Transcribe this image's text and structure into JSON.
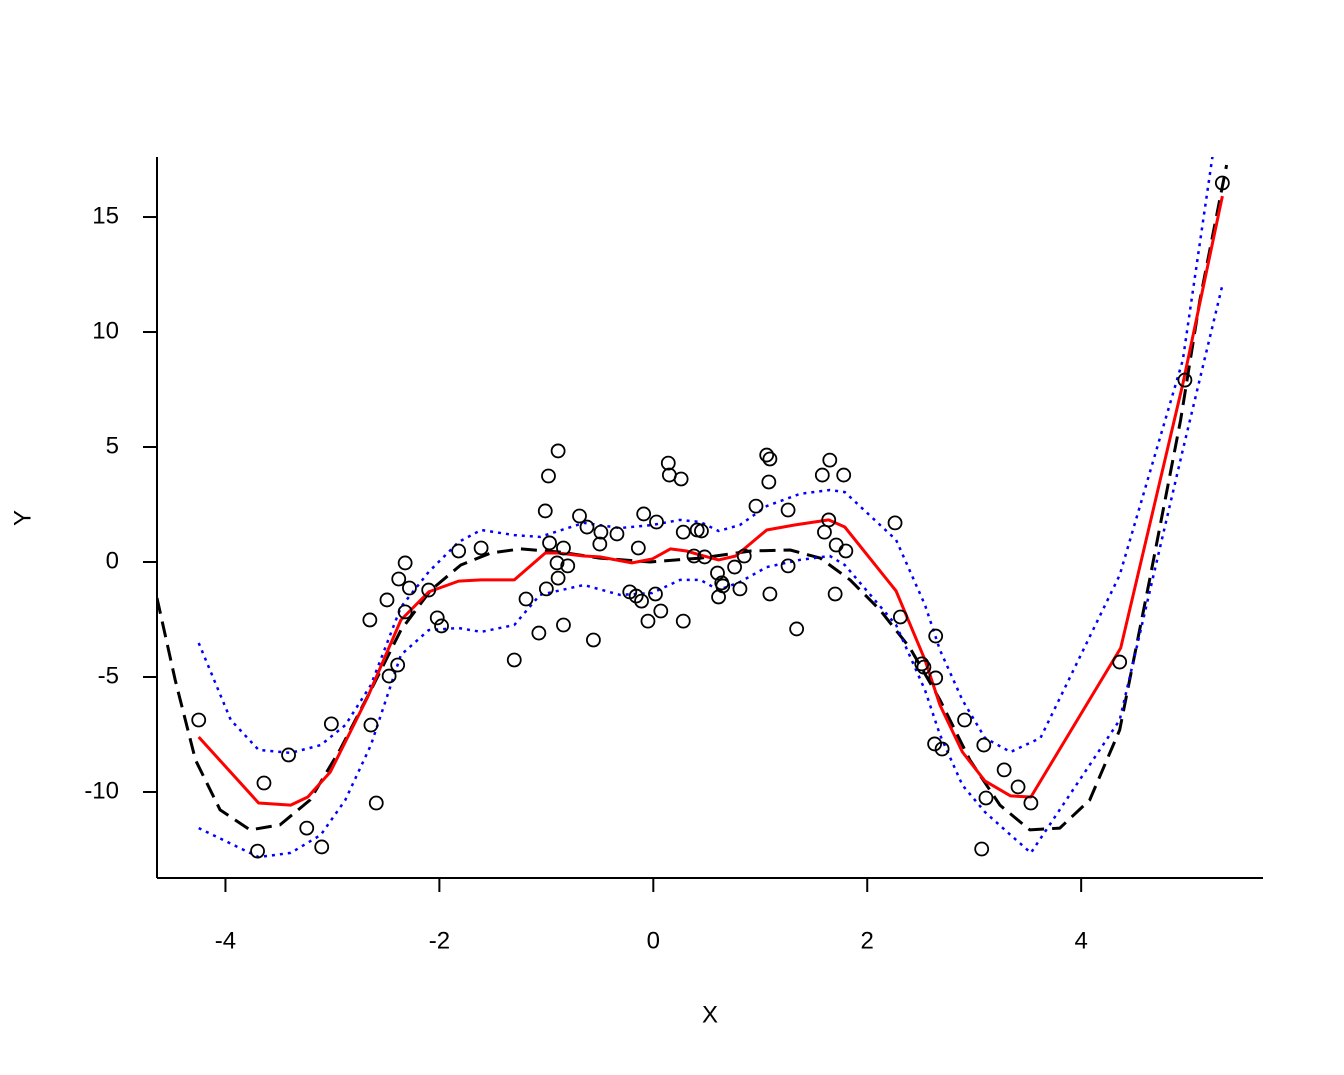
{
  "chart_data": {
    "type": "scatter",
    "x_label": "X",
    "y_label": "Y",
    "xlim": [
      -4.64,
      5.7
    ],
    "ylim": [
      -13.74,
      17.61
    ],
    "xticks": [
      -4,
      -2,
      0,
      2,
      4
    ],
    "yticks": [
      -10,
      -5,
      0,
      5,
      10,
      15
    ],
    "series": [
      {
        "style": "points",
        "color": "#000000",
        "x": [
          -4.25,
          -3.64,
          -3.7,
          -3.41,
          -3.24,
          -3.1,
          -3.01,
          -2.65,
          -2.64,
          -2.59,
          -2.49,
          -2.47,
          -2.39,
          -2.38,
          -2.32,
          -2.32,
          -2.28,
          -2.1,
          -2.02,
          -1.98,
          -1.82,
          -1.61,
          -1.3,
          -1.19,
          -1.07,
          -1.01,
          -0.98,
          -0.97,
          -1.0,
          -0.89,
          -0.9,
          -0.89,
          -0.84,
          -0.84,
          -0.8,
          -0.69,
          -0.62,
          -0.56,
          -0.5,
          -0.49,
          -0.34,
          -0.22,
          -0.16,
          -0.14,
          -0.11,
          -0.09,
          -0.05,
          0.02,
          0.03,
          0.07,
          0.14,
          0.15,
          0.26,
          0.28,
          0.28,
          0.38,
          0.41,
          0.45,
          0.48,
          0.6,
          0.61,
          0.64,
          0.65,
          0.76,
          0.81,
          0.85,
          0.96,
          1.06,
          1.09,
          1.08,
          1.09,
          1.26,
          1.26,
          1.34,
          1.58,
          1.6,
          1.65,
          1.64,
          1.7,
          1.71,
          1.78,
          1.8,
          2.26,
          2.31,
          2.51,
          2.53,
          2.64,
          2.63,
          2.64,
          2.7,
          2.91,
          3.07,
          3.09,
          3.11,
          3.28,
          3.41,
          3.53,
          4.36,
          4.97,
          5.32
        ],
        "values": [
          -6.87,
          -9.61,
          -12.57,
          -8.39,
          -11.57,
          -12.39,
          -7.04,
          -2.52,
          -7.09,
          -10.48,
          -1.65,
          -4.96,
          -4.48,
          -0.74,
          -0.04,
          -2.17,
          -1.13,
          -1.22,
          -2.43,
          -2.78,
          0.48,
          0.61,
          -4.26,
          -1.61,
          -3.09,
          2.22,
          3.74,
          0.83,
          -1.17,
          4.83,
          -0.04,
          -0.7,
          0.61,
          -2.74,
          -0.17,
          2.0,
          1.52,
          -3.39,
          0.78,
          1.3,
          1.22,
          -1.3,
          -1.48,
          0.61,
          -1.7,
          2.09,
          -2.57,
          -1.39,
          1.74,
          -2.13,
          4.3,
          3.78,
          3.61,
          -2.57,
          1.3,
          0.26,
          1.39,
          1.35,
          0.22,
          -0.48,
          -1.52,
          -0.91,
          -1.04,
          -0.22,
          -1.17,
          0.26,
          2.43,
          4.65,
          4.48,
          3.48,
          -1.39,
          2.26,
          -0.17,
          -2.91,
          3.78,
          1.3,
          4.43,
          1.83,
          -1.39,
          0.74,
          3.78,
          0.48,
          1.7,
          -2.39,
          -4.43,
          -4.57,
          -3.22,
          -7.91,
          -5.04,
          -8.13,
          -6.87,
          -12.48,
          -7.96,
          -10.26,
          -9.04,
          -9.78,
          -10.48,
          -4.35,
          7.91,
          16.48
        ]
      },
      {
        "style": "dashed",
        "color": "#000000",
        "x": [
          -4.64,
          -4.47,
          -4.28,
          -4.05,
          -3.77,
          -3.49,
          -3.21,
          -2.93,
          -2.64,
          -2.36,
          -2.08,
          -1.8,
          -1.52,
          -1.24,
          -0.87,
          -0.5,
          -0.03,
          0.44,
          0.91,
          1.28,
          1.56,
          1.84,
          2.12,
          2.4,
          2.68,
          2.96,
          3.24,
          3.52,
          3.8,
          4.08,
          4.36,
          4.64,
          4.93,
          5.11,
          5.36
        ],
        "values": [
          -1.57,
          -5.13,
          -8.61,
          -10.78,
          -11.65,
          -11.43,
          -10.35,
          -8.17,
          -5.57,
          -2.96,
          -1.22,
          -0.13,
          0.39,
          0.57,
          0.43,
          0.17,
          0,
          0.17,
          0.48,
          0.52,
          0.17,
          -0.78,
          -2.09,
          -3.74,
          -6.0,
          -8.61,
          -10.57,
          -11.65,
          -11.57,
          -10.35,
          -7.3,
          -0.78,
          6.17,
          11.39,
          17.26
        ]
      },
      {
        "style": "dotted",
        "color": "#0000ff",
        "x": [
          -4.25,
          -3.95,
          -3.69,
          -3.39,
          -3.11,
          -2.88,
          -2.64,
          -2.36,
          -2.1,
          -1.82,
          -1.61,
          -1.3,
          -1.06,
          -0.65,
          -0.31,
          -0.01,
          0.25,
          0.44,
          0.61,
          0.81,
          1.06,
          1.37,
          1.65,
          1.79,
          2.27,
          2.54,
          2.68,
          2.89,
          3.1,
          3.34,
          3.62,
          4.36,
          4.95,
          5.23
        ],
        "values": [
          -3.52,
          -6.87,
          -8.17,
          -8.3,
          -7.96,
          -7.09,
          -5.35,
          -1.96,
          -0.43,
          0.87,
          1.39,
          1.17,
          1.09,
          1.7,
          1.48,
          1.61,
          1.83,
          1.74,
          1.35,
          1.61,
          2.43,
          2.96,
          3.13,
          3.04,
          0.96,
          -1.87,
          -3.83,
          -6.0,
          -7.65,
          -8.26,
          -7.65,
          -0.57,
          8.78,
          17.7
        ]
      },
      {
        "style": "dotted",
        "color": "#0000ff",
        "x": [
          -4.25,
          -3.69,
          -3.39,
          -3.11,
          -2.88,
          -2.64,
          -2.36,
          -2.1,
          -1.82,
          -1.61,
          -1.3,
          -1.06,
          -0.65,
          -0.31,
          -0.01,
          0.25,
          0.44,
          0.61,
          0.81,
          1.06,
          1.37,
          1.65,
          1.79,
          2.27,
          2.54,
          2.68,
          2.89,
          3.1,
          3.34,
          3.53,
          4.36,
          4.95,
          5.32
        ],
        "values": [
          -11.57,
          -12.83,
          -12.65,
          -11.87,
          -10.35,
          -7.96,
          -4.04,
          -2.96,
          -2.87,
          -3.04,
          -2.74,
          -1.43,
          -1.0,
          -1.43,
          -1.35,
          -0.78,
          -0.78,
          -1.22,
          -0.87,
          -0.22,
          0.09,
          0.26,
          -0.13,
          -2.74,
          -5.57,
          -7.52,
          -9.7,
          -10.87,
          -11.87,
          -12.65,
          -6.87,
          4.87,
          12.04
        ]
      },
      {
        "style": "solid",
        "color": "#ff0000",
        "x": [
          -4.25,
          -3.69,
          -3.39,
          -3.23,
          -3.02,
          -2.67,
          -2.36,
          -2.1,
          -1.82,
          -1.61,
          -1.3,
          -1.01,
          -0.89,
          -0.65,
          -0.5,
          -0.2,
          -0.01,
          0.16,
          0.31,
          0.44,
          0.61,
          0.77,
          1.06,
          1.32,
          1.64,
          1.79,
          2.27,
          2.54,
          2.68,
          2.89,
          3.1,
          3.34,
          3.53,
          4.37,
          4.95,
          5.32
        ],
        "values": [
          -7.61,
          -10.48,
          -10.57,
          -10.22,
          -9.13,
          -5.87,
          -2.52,
          -1.3,
          -0.83,
          -0.78,
          -0.78,
          0.39,
          0.39,
          0.26,
          0.22,
          -0.04,
          0.13,
          0.57,
          0.48,
          0.3,
          0.09,
          0.26,
          1.39,
          1.61,
          1.83,
          1.52,
          -1.26,
          -4.26,
          -6.22,
          -8.26,
          -9.52,
          -10.17,
          -10.22,
          -3.74,
          7.74,
          15.91
        ]
      }
    ]
  }
}
